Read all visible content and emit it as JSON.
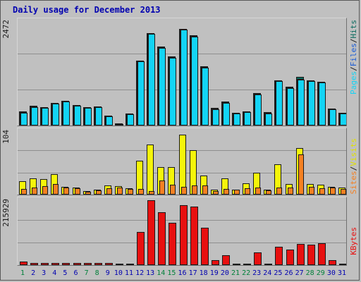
{
  "title": "Daily usage for December 2013",
  "colors": {
    "pages": "#13d4f5",
    "files": "#2fb9f0",
    "hits": "#0b6b5f",
    "visits": "#f5f50a",
    "sites": "#f48022",
    "kbytes": "#e81010",
    "weekday_label": "#0000b0",
    "weekend_label": "#00803a"
  },
  "axis_labels": {
    "hits_max": "2472",
    "visits_max": "104",
    "kbytes_max": "215929",
    "pages": "Pages",
    "files": "Files",
    "hits": "Hits",
    "visits": "Visits",
    "sites": "Sites",
    "kbytes": "KBytes",
    "separator": "/"
  },
  "chart_data": {
    "type": "bar",
    "categories": [
      "1",
      "2",
      "3",
      "4",
      "5",
      "6",
      "7",
      "8",
      "9",
      "10",
      "11",
      "12",
      "13",
      "14",
      "15",
      "16",
      "17",
      "18",
      "19",
      "20",
      "21",
      "22",
      "23",
      "24",
      "25",
      "26",
      "27",
      "28",
      "29",
      "30",
      "31"
    ],
    "weekend_days": [
      "1",
      "7",
      "8",
      "14",
      "15",
      "21",
      "22",
      "28",
      "29"
    ],
    "panels": [
      {
        "name": "hits_files_pages",
        "ymax": 2472,
        "series": [
          {
            "name": "Hits",
            "values": [
              330,
              460,
              440,
              530,
              590,
              480,
              430,
              450,
              240,
              50,
              280,
              1540,
              2190,
              1870,
              1640,
              2290,
              2140,
              1410,
              410,
              560,
              300,
              330,
              760,
              310,
              1070,
              920,
              1150,
              1070,
              1040,
              400,
              300
            ]
          },
          {
            "name": "Files",
            "values": [
              320,
              450,
              430,
              520,
              580,
              470,
              420,
              440,
              230,
              45,
              270,
              1520,
              2180,
              1850,
              1620,
              2280,
              2120,
              1390,
              400,
              550,
              290,
              320,
              750,
              300,
              1060,
              900,
              1110,
              1060,
              1030,
              390,
              290
            ]
          },
          {
            "name": "Pages",
            "values": [
              300,
              440,
              420,
              510,
              570,
              460,
              410,
              430,
              220,
              40,
              260,
              1520,
              2170,
              1830,
              1600,
              2270,
              2110,
              1370,
              390,
              540,
              280,
              310,
              740,
              290,
              1050,
              880,
              1090,
              1050,
              1020,
              380,
              280
            ]
          }
        ]
      },
      {
        "name": "visits_sites",
        "ymax": 104,
        "series": [
          {
            "name": "Visits",
            "values": [
              22,
              26,
              25,
              33,
              13,
              11,
              6,
              8,
              15,
              14,
              10,
              55,
              82,
              45,
              45,
              98,
              73,
              31,
              8,
              27,
              8,
              18,
              36,
              8,
              50,
              17,
              76,
              17,
              16,
              13,
              11
            ]
          },
          {
            "name": "Sites",
            "values": [
              9,
              12,
              14,
              17,
              12,
              10,
              5,
              7,
              10,
              12,
              9,
              9,
              6,
              23,
              16,
              13,
              15,
              15,
              6,
              9,
              8,
              10,
              11,
              7,
              11,
              11,
              66,
              13,
              10,
              11,
              9
            ]
          }
        ]
      },
      {
        "name": "kbytes",
        "ymax": 215929,
        "series": [
          {
            "name": "KBytes",
            "values": [
              12000,
              8000,
              8000,
              8000,
              6000,
              6000,
              6000,
              6000,
              6000,
              2000,
              3000,
              110000,
              215929,
              175000,
              140000,
              200000,
              195000,
              124000,
              16000,
              32000,
              2000,
              2000,
              42000,
              3000,
              62000,
              52000,
              70000,
              68000,
              72000,
              16000,
              4000
            ]
          }
        ]
      }
    ]
  }
}
